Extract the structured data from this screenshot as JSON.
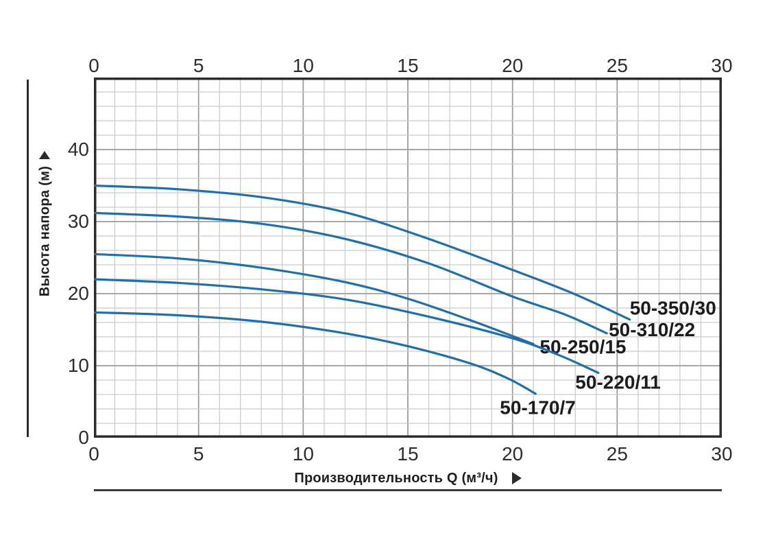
{
  "chart_data": {
    "type": "line",
    "title": "",
    "xlabel": "Производительность Q (м³/ч)",
    "ylabel": "Высота напора (м)",
    "x_unit": "м³/ч",
    "y_unit": "м",
    "xlim": [
      0,
      30
    ],
    "ylim": [
      0,
      50
    ],
    "x_major_ticks": [
      0,
      5,
      10,
      15,
      20,
      25,
      30
    ],
    "x_minor_step": 1,
    "x_major_every": 5,
    "y_tick_labels": [
      0,
      10,
      20,
      30,
      40
    ],
    "y_minor_step": 2,
    "y_major_every": 10,
    "grid": "minor and major, top and bottom x tick labels",
    "legend_position": "labels at curve ends",
    "series": [
      {
        "name": "50-350/30",
        "points": [
          [
            0,
            35.0
          ],
          [
            4,
            34.5
          ],
          [
            8,
            33.4
          ],
          [
            12,
            31.3
          ],
          [
            16,
            27.6
          ],
          [
            20,
            23.3
          ],
          [
            23,
            19.9
          ],
          [
            25.6,
            16.4
          ]
        ],
        "label_at": [
          25.6,
          17.8
        ]
      },
      {
        "name": "50-310/22",
        "points": [
          [
            0,
            31.2
          ],
          [
            4,
            30.7
          ],
          [
            8,
            29.7
          ],
          [
            12,
            27.6
          ],
          [
            16,
            24.2
          ],
          [
            20,
            19.6
          ],
          [
            22.5,
            17.1
          ],
          [
            24.5,
            14.5
          ]
        ],
        "label_at": [
          24.6,
          14.8
        ]
      },
      {
        "name": "50-250/15",
        "points": [
          [
            0,
            25.5
          ],
          [
            4,
            24.9
          ],
          [
            8,
            23.6
          ],
          [
            12,
            21.6
          ],
          [
            15,
            19.3
          ],
          [
            18,
            16.3
          ],
          [
            21,
            13.0
          ]
        ],
        "label_at": [
          21.3,
          12.4
        ]
      },
      {
        "name": "50-220/11",
        "points": [
          [
            0,
            22.0
          ],
          [
            4,
            21.5
          ],
          [
            8,
            20.6
          ],
          [
            12,
            19.2
          ],
          [
            16,
            16.8
          ],
          [
            20,
            13.8
          ],
          [
            22.2,
            11.5
          ],
          [
            24.1,
            9.0
          ]
        ],
        "label_at": [
          23.0,
          7.5
        ]
      },
      {
        "name": "50-170/7",
        "points": [
          [
            0,
            17.4
          ],
          [
            4,
            17.0
          ],
          [
            8,
            16.1
          ],
          [
            12,
            14.5
          ],
          [
            15,
            12.7
          ],
          [
            18,
            10.3
          ],
          [
            19.8,
            8.2
          ],
          [
            21.1,
            6.1
          ]
        ],
        "label_at": [
          19.4,
          4.0
        ]
      }
    ]
  },
  "colors": {
    "curve": "#1f6fa8",
    "grid_minor": "#cbcbcb",
    "grid_major": "#9c9c9c",
    "plot_border": "#2b2b2b",
    "tick_text": "#2d2d2d",
    "curve_label_text": "#1c1c1c",
    "axis_title_text": "#1f1f1f",
    "background": "#ffffff"
  },
  "icons": {
    "y_axis_arrow": "up-triangle",
    "x_axis_arrow": "right-triangle"
  }
}
